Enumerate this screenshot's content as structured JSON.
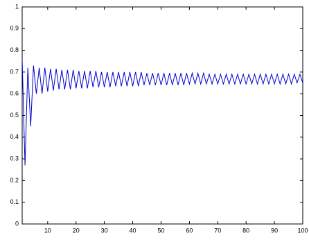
{
  "chart_data": {
    "type": "line",
    "x": [
      1,
      2,
      3,
      4,
      5,
      6,
      7,
      8,
      9,
      10,
      11,
      12,
      13,
      14,
      15,
      16,
      17,
      18,
      19,
      20,
      21,
      22,
      23,
      24,
      25,
      26,
      27,
      28,
      29,
      30,
      31,
      32,
      33,
      34,
      35,
      36,
      37,
      38,
      39,
      40,
      41,
      42,
      43,
      44,
      45,
      46,
      47,
      48,
      49,
      50,
      51,
      52,
      53,
      54,
      55,
      56,
      57,
      58,
      59,
      60,
      61,
      62,
      63,
      64,
      65,
      66,
      67,
      68,
      69,
      70,
      71,
      72,
      73,
      74,
      75,
      76,
      77,
      78,
      79,
      80,
      81,
      82,
      83,
      84,
      85,
      86,
      87,
      88,
      89,
      90,
      91,
      92,
      93,
      94,
      95,
      96,
      97,
      98,
      99,
      100
    ],
    "values": [
      0.76,
      0.27,
      0.72,
      0.45,
      0.73,
      0.6,
      0.72,
      0.6,
      0.72,
      0.61,
      0.715,
      0.615,
      0.715,
      0.62,
      0.71,
      0.62,
      0.71,
      0.62,
      0.71,
      0.625,
      0.705,
      0.625,
      0.705,
      0.625,
      0.705,
      0.63,
      0.705,
      0.63,
      0.7,
      0.63,
      0.7,
      0.63,
      0.7,
      0.635,
      0.7,
      0.635,
      0.7,
      0.635,
      0.7,
      0.635,
      0.7,
      0.635,
      0.7,
      0.64,
      0.695,
      0.64,
      0.695,
      0.64,
      0.695,
      0.64,
      0.695,
      0.64,
      0.695,
      0.64,
      0.695,
      0.64,
      0.695,
      0.64,
      0.695,
      0.645,
      0.695,
      0.645,
      0.695,
      0.645,
      0.695,
      0.645,
      0.69,
      0.645,
      0.69,
      0.645,
      0.69,
      0.645,
      0.69,
      0.645,
      0.69,
      0.645,
      0.69,
      0.645,
      0.69,
      0.645,
      0.69,
      0.645,
      0.69,
      0.645,
      0.69,
      0.645,
      0.69,
      0.645,
      0.69,
      0.645,
      0.69,
      0.645,
      0.69,
      0.645,
      0.69,
      0.645,
      0.69,
      0.65,
      0.69,
      0.65
    ],
    "color": "#0000cc",
    "xlim": [
      1,
      100
    ],
    "xticks": [
      10,
      20,
      30,
      40,
      50,
      60,
      70,
      80,
      90,
      100
    ],
    "ylim": [
      0,
      1
    ],
    "yticks": [
      0,
      0.1,
      0.2,
      0.3,
      0.4,
      0.5,
      0.6,
      0.7,
      0.8,
      0.9,
      1
    ]
  }
}
